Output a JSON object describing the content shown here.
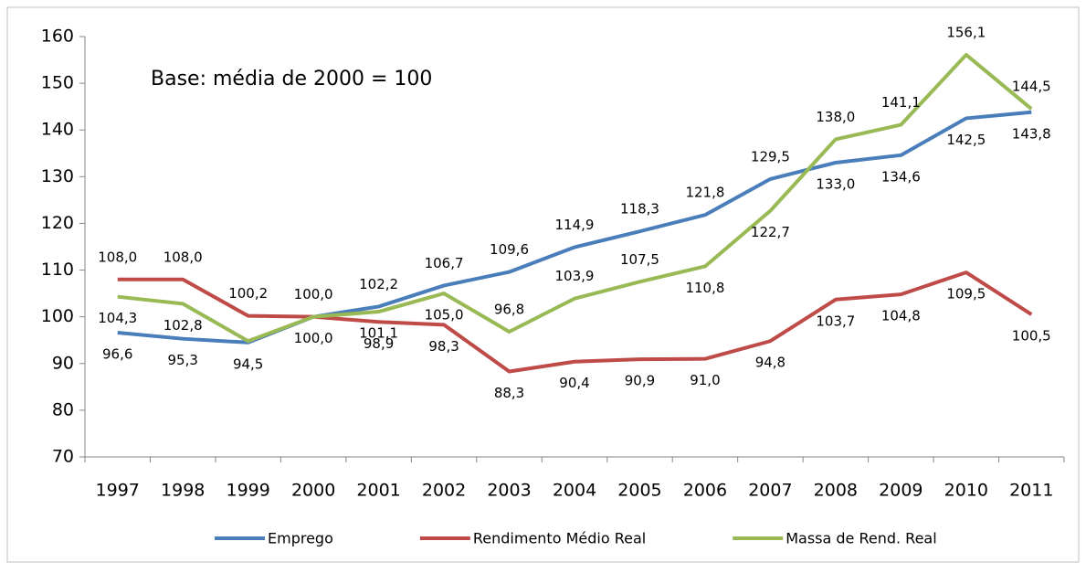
{
  "chart_data": {
    "type": "line",
    "annotation": "Base: média de 2000 = 100",
    "categories": [
      "1997",
      "1998",
      "1999",
      "2000",
      "2001",
      "2002",
      "2003",
      "2004",
      "2005",
      "2006",
      "2007",
      "2008",
      "2009",
      "2010",
      "2011"
    ],
    "series": [
      {
        "name": "Emprego",
        "color": "#4a7ebb",
        "values": [
          96.6,
          95.3,
          94.5,
          100.0,
          102.2,
          106.7,
          109.6,
          114.9,
          118.3,
          121.8,
          129.5,
          133.0,
          134.6,
          142.5,
          143.8
        ],
        "value_labels": [
          "96,6",
          "95,3",
          "94,5",
          "100,0",
          "102,2",
          "106,7",
          "109,6",
          "114,9",
          "118,3",
          "121,8",
          "129,5",
          "133,0",
          "134,6",
          "142,5",
          "143,8"
        ]
      },
      {
        "name": "Rendimento Médio Real",
        "color": "#be4b48",
        "values": [
          108.0,
          108.0,
          100.2,
          100.0,
          98.9,
          98.3,
          88.3,
          90.4,
          90.9,
          91.0,
          94.8,
          103.7,
          104.8,
          109.5,
          100.5
        ],
        "value_labels": [
          "108,0",
          "108,0",
          "100,2",
          "100,0",
          "98,9",
          "98,3",
          "88,3",
          "90,4",
          "90,9",
          "91,0",
          "94,8",
          "103,7",
          "104,8",
          "109,5",
          "100,5"
        ]
      },
      {
        "name": "Massa de Rend. Real",
        "color": "#98b954",
        "values": [
          104.3,
          102.8,
          94.8,
          100.0,
          101.1,
          105.0,
          96.8,
          103.9,
          107.5,
          110.8,
          122.7,
          138.0,
          141.1,
          156.1,
          144.5
        ],
        "value_labels": [
          "104,3",
          "102,8",
          null,
          null,
          "101,1",
          "105,0",
          "96,8",
          "103,9",
          "107,5",
          "110,8",
          "122,7",
          "138,0",
          "141,1",
          "156,1",
          "144,5"
        ]
      }
    ],
    "ylim": [
      70,
      160
    ],
    "yticks": [
      70,
      80,
      90,
      100,
      110,
      120,
      130,
      140,
      150,
      160
    ],
    "legend": "bottom"
  }
}
